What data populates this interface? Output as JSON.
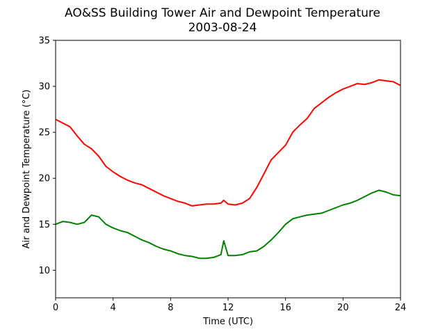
{
  "chart_data": {
    "type": "line",
    "title": "AO&SS Building Tower Air and Dewpoint Temperature",
    "subtitle": "2003-08-24",
    "xlabel": "Time (UTC)",
    "ylabel": "Air and Dewpoint Temperature (°C)",
    "xlim": [
      0,
      24
    ],
    "ylim": [
      7,
      35
    ],
    "xticks": [
      "0",
      "4",
      "8",
      "12",
      "16",
      "20",
      "24"
    ],
    "yticks": [
      "10",
      "15",
      "20",
      "25",
      "30",
      "35"
    ],
    "grid": false,
    "legend": "none",
    "x": [
      0,
      0.5,
      1,
      1.5,
      2,
      2.5,
      3,
      3.5,
      4,
      4.5,
      5,
      5.5,
      6,
      6.5,
      7,
      7.5,
      8,
      8.5,
      9,
      9.5,
      10,
      10.5,
      11,
      11.5,
      11.7,
      12,
      12.5,
      13,
      13.5,
      14,
      14.5,
      15,
      15.5,
      16,
      16.5,
      17,
      17.5,
      18,
      18.5,
      19,
      19.5,
      20,
      20.5,
      21,
      21.5,
      22,
      22.5,
      23,
      23.5,
      24
    ],
    "series": [
      {
        "color": "#ff0000",
        "values": [
          26.4,
          26.0,
          25.6,
          24.6,
          23.7,
          23.2,
          22.4,
          21.3,
          20.7,
          20.2,
          19.8,
          19.5,
          19.3,
          18.9,
          18.5,
          18.1,
          17.8,
          17.5,
          17.3,
          17.0,
          17.1,
          17.2,
          17.2,
          17.3,
          17.6,
          17.2,
          17.1,
          17.3,
          17.8,
          19.0,
          20.5,
          22.0,
          22.8,
          23.6,
          25.0,
          25.8,
          26.5,
          27.6,
          28.2,
          28.8,
          29.3,
          29.7,
          30.0,
          30.3,
          30.2,
          30.4,
          30.7,
          30.6,
          30.5,
          30.1
        ]
      },
      {
        "color": "#008000",
        "values": [
          15.0,
          15.3,
          15.2,
          15.0,
          15.2,
          16.0,
          15.8,
          15.0,
          14.6,
          14.3,
          14.1,
          13.7,
          13.3,
          13.0,
          12.6,
          12.3,
          12.1,
          11.8,
          11.6,
          11.5,
          11.3,
          11.3,
          11.4,
          11.7,
          13.2,
          11.6,
          11.6,
          11.7,
          12.0,
          12.1,
          12.6,
          13.3,
          14.1,
          15.0,
          15.6,
          15.8,
          16.0,
          16.1,
          16.2,
          16.5,
          16.8,
          17.1,
          17.3,
          17.6,
          18.0,
          18.4,
          18.7,
          18.5,
          18.2,
          18.1
        ]
      }
    ]
  }
}
